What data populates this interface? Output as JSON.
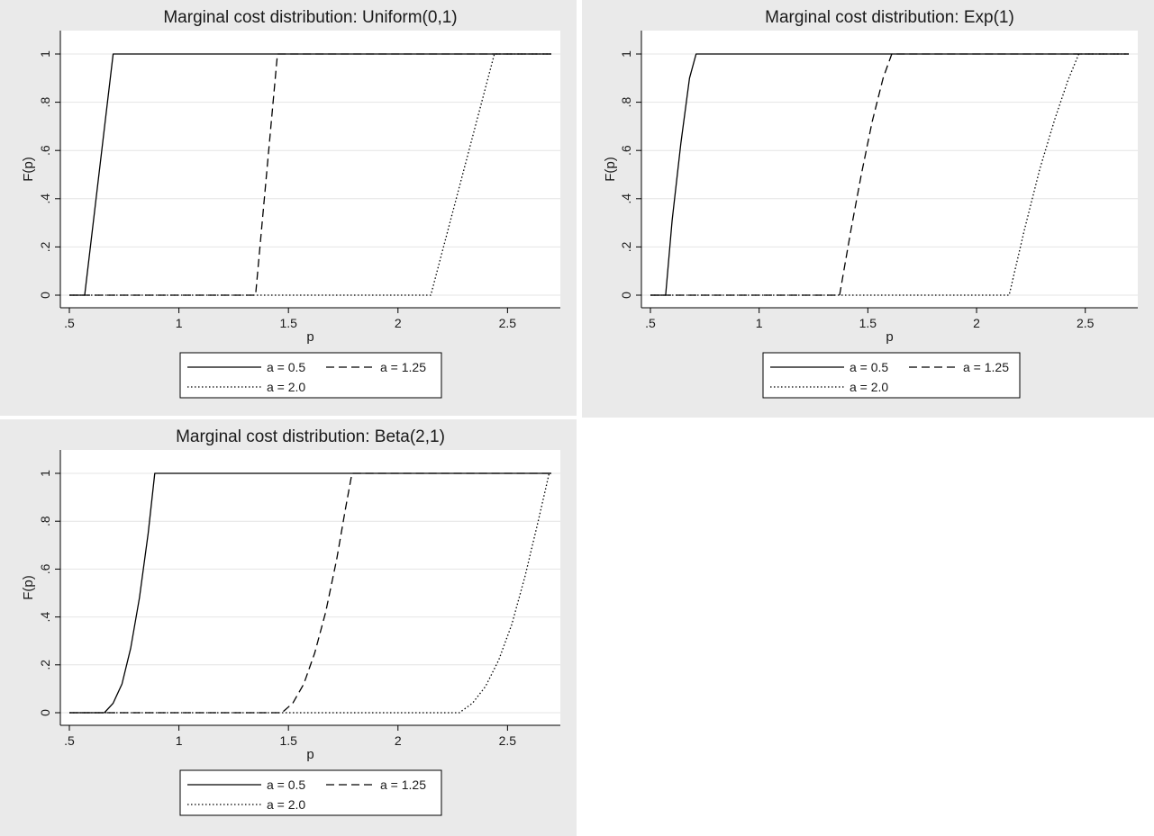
{
  "chart_data": [
    {
      "type": "line",
      "title": "Marginal cost distribution: Uniform(0,1)",
      "xlabel": "p",
      "ylabel": "F(p)",
      "xlim": [
        0.5,
        2.7
      ],
      "ylim": [
        0,
        1
      ],
      "xticks": [
        ".5",
        "1",
        "1.5",
        "2",
        "2.5"
      ],
      "xtick_values": [
        0.5,
        1,
        1.5,
        2,
        2.5
      ],
      "yticks": [
        "0",
        ".2",
        ".4",
        ".6",
        ".8",
        "1"
      ],
      "ytick_values": [
        0,
        0.2,
        0.4,
        0.6,
        0.8,
        1
      ],
      "grid": true,
      "legend_position": "bottom",
      "series": [
        {
          "name": "a = 0.5",
          "style": "solid",
          "x": [
            0.5,
            0.57,
            0.7,
            2.7
          ],
          "y": [
            0,
            0,
            1,
            1
          ]
        },
        {
          "name": "a = 1.25",
          "style": "dashed",
          "x": [
            0.5,
            1.35,
            1.45,
            2.7
          ],
          "y": [
            0,
            0,
            1,
            1
          ]
        },
        {
          "name": "a = 2.0",
          "style": "dotted",
          "x": [
            0.5,
            2.15,
            2.44,
            2.7
          ],
          "y": [
            0,
            0,
            1,
            1
          ]
        }
      ]
    },
    {
      "type": "line",
      "title": "Marginal cost distribution: Exp(1)",
      "xlabel": "p",
      "ylabel": "F(p)",
      "xlim": [
        0.5,
        2.7
      ],
      "ylim": [
        0,
        1
      ],
      "xticks": [
        ".5",
        "1",
        "1.5",
        "2",
        "2.5"
      ],
      "xtick_values": [
        0.5,
        1,
        1.5,
        2,
        2.5
      ],
      "yticks": [
        "0",
        ".2",
        ".4",
        ".6",
        ".8",
        "1"
      ],
      "ytick_values": [
        0,
        0.2,
        0.4,
        0.6,
        0.8,
        1
      ],
      "grid": true,
      "legend_position": "bottom",
      "series": [
        {
          "name": "a = 0.5",
          "style": "solid",
          "x": [
            0.5,
            0.57,
            0.6,
            0.64,
            0.68,
            0.71,
            2.7
          ],
          "y": [
            0,
            0,
            0.31,
            0.63,
            0.9,
            1,
            1
          ]
        },
        {
          "name": "a = 1.25",
          "style": "dashed",
          "x": [
            0.5,
            1.37,
            1.42,
            1.47,
            1.52,
            1.57,
            1.61,
            2.7
          ],
          "y": [
            0,
            0,
            0.26,
            0.5,
            0.72,
            0.9,
            1,
            1
          ]
        },
        {
          "name": "a = 2.0",
          "style": "dotted",
          "x": [
            0.5,
            2.15,
            2.22,
            2.29,
            2.36,
            2.42,
            2.47,
            2.7
          ],
          "y": [
            0,
            0,
            0.27,
            0.52,
            0.73,
            0.89,
            1,
            1
          ]
        }
      ]
    },
    {
      "type": "line",
      "title": "Marginal cost distribution: Beta(2,1)",
      "xlabel": "p",
      "ylabel": "F(p)",
      "xlim": [
        0.5,
        2.7
      ],
      "ylim": [
        0,
        1
      ],
      "xticks": [
        ".5",
        "1",
        "1.5",
        "2",
        "2.5"
      ],
      "xtick_values": [
        0.5,
        1,
        1.5,
        2,
        2.5
      ],
      "yticks": [
        "0",
        ".2",
        ".4",
        ".6",
        ".8",
        "1"
      ],
      "ytick_values": [
        0,
        0.2,
        0.4,
        0.6,
        0.8,
        1
      ],
      "grid": true,
      "legend_position": "bottom",
      "series": [
        {
          "name": "a = 0.5",
          "style": "solid",
          "x": [
            0.5,
            0.66,
            0.7,
            0.74,
            0.78,
            0.82,
            0.86,
            0.89,
            2.7
          ],
          "y": [
            0,
            0,
            0.04,
            0.12,
            0.27,
            0.48,
            0.75,
            1,
            1
          ]
        },
        {
          "name": "a = 1.25",
          "style": "dashed",
          "x": [
            0.5,
            1.47,
            1.52,
            1.57,
            1.62,
            1.67,
            1.72,
            1.76,
            1.79,
            2.7
          ],
          "y": [
            0,
            0,
            0.04,
            0.12,
            0.25,
            0.42,
            0.64,
            0.85,
            1,
            1
          ]
        },
        {
          "name": "a = 2.0",
          "style": "dotted",
          "x": [
            0.5,
            2.28,
            2.34,
            2.4,
            2.46,
            2.52,
            2.58,
            2.64,
            2.69,
            2.7
          ],
          "y": [
            0,
            0,
            0.04,
            0.11,
            0.22,
            0.37,
            0.57,
            0.8,
            1,
            1
          ]
        }
      ]
    }
  ]
}
